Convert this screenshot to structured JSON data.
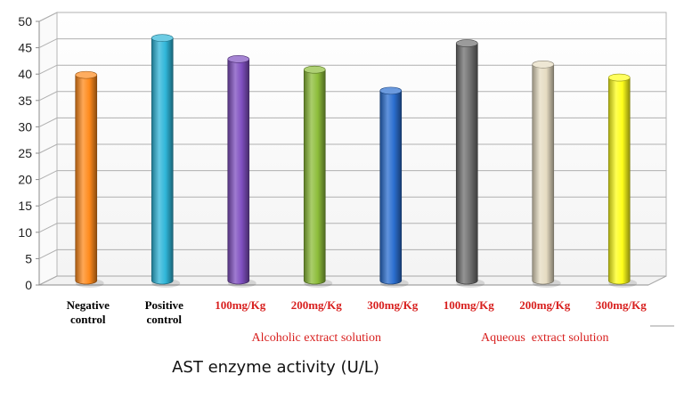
{
  "caption": "AST enzyme activity (U/L)",
  "chart_data": {
    "type": "bar",
    "title": "",
    "xlabel": "AST enzyme activity (U/L)",
    "ylabel": "",
    "ylim": [
      0,
      50
    ],
    "yticks": [
      "0",
      "5",
      "10",
      "15",
      "20",
      "25",
      "30",
      "35",
      "40",
      "45",
      "50"
    ],
    "grid": true,
    "categories": [
      {
        "lines": [
          "Negative",
          "control"
        ],
        "style": "black"
      },
      {
        "lines": [
          "Positive",
          "control"
        ],
        "style": "black"
      },
      {
        "lines": [
          "100mg/Kg"
        ],
        "style": "red"
      },
      {
        "lines": [
          "200mg/Kg"
        ],
        "style": "red"
      },
      {
        "lines": [
          "300mg/Kg"
        ],
        "style": "red"
      },
      {
        "lines": [
          "100mg/Kg"
        ],
        "style": "red"
      },
      {
        "lines": [
          "200mg/Kg"
        ],
        "style": "red"
      },
      {
        "lines": [
          "300mg/Kg"
        ],
        "style": "red"
      }
    ],
    "values": [
      39,
      46,
      42,
      40,
      36,
      45,
      41,
      38.5
    ],
    "colors": [
      "#ff8a1c",
      "#2fb6d9",
      "#7f4fc0",
      "#8dbd3a",
      "#2b6fd0",
      "#707070",
      "#e6dcc2",
      "#ffff1a"
    ],
    "groups": [
      {
        "label": "Alcoholic extract solution",
        "span": [
          2,
          4
        ]
      },
      {
        "label": "Aqueous  extract solution",
        "span": [
          5,
          7
        ]
      }
    ]
  }
}
